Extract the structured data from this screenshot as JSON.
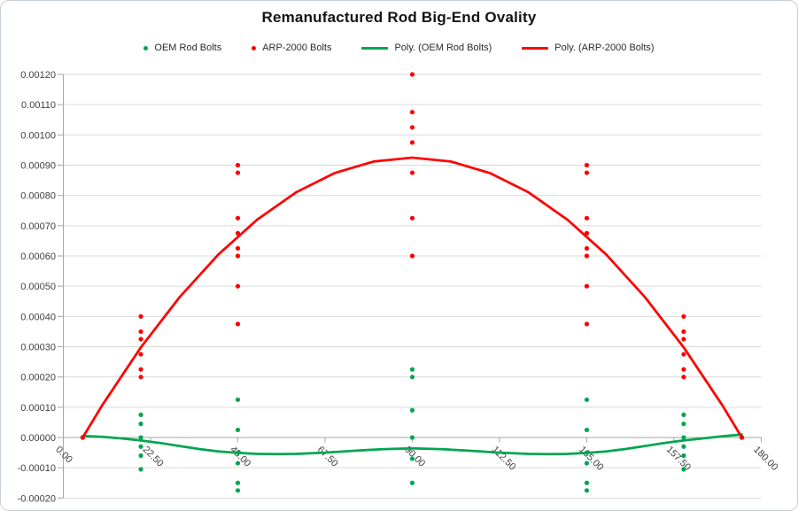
{
  "window": {
    "background": "#ffffff",
    "border_color": "#c7ced6"
  },
  "colors": {
    "oem_green": "#00a651",
    "arp_red": "#ff0000",
    "gridline": "#d9d9d9",
    "axis_line": "#a6a6a6",
    "axis_label": "#404040",
    "title_text": "#141414"
  },
  "chart_data": {
    "type": "scatter",
    "title": "Remanufactured Rod Big-End Ovality",
    "legend_position": "top",
    "grid": "horizontal",
    "x_axis": {
      "min": 0,
      "max": 180,
      "tick_values": [
        0,
        22.5,
        45,
        67.5,
        90,
        112.5,
        135,
        157.5,
        180
      ],
      "tick_labels": [
        "0.00",
        "22.50",
        "45.00",
        "67.50",
        "90.00",
        "112.50",
        "135.00",
        "157.50",
        "180.00"
      ],
      "label_rotation_deg": 45
    },
    "y_axis": {
      "min": -0.0002,
      "max": 0.0012,
      "tick_interval": 0.0001,
      "tick_labels": [
        "0.00120",
        "0.00110",
        "0.00100",
        "0.00090",
        "0.00080",
        "0.00070",
        "0.00060",
        "0.00050",
        "0.00040",
        "0.00030",
        "0.00020",
        "0.00010",
        "0.00000",
        "-0.00010",
        "-0.00020"
      ]
    },
    "series": [
      {
        "name": "OEM Rod Bolts",
        "kind": "scatter",
        "marker": "dot",
        "color": "#00a651",
        "points": [
          [
            5,
            0
          ],
          [
            20,
            7.5e-05
          ],
          [
            20,
            4.5e-05
          ],
          [
            20,
            0
          ],
          [
            20,
            -3e-05
          ],
          [
            20,
            -6e-05
          ],
          [
            20,
            -0.000105
          ],
          [
            45,
            0.000125
          ],
          [
            45,
            2.5e-05
          ],
          [
            45,
            -5e-05
          ],
          [
            45,
            -8.5e-05
          ],
          [
            45,
            -0.00015
          ],
          [
            45,
            -0.000175
          ],
          [
            90,
            0.000225
          ],
          [
            90,
            0.0002
          ],
          [
            90,
            9e-05
          ],
          [
            90,
            0
          ],
          [
            90,
            -7e-05
          ],
          [
            90,
            -0.00015
          ],
          [
            135,
            0.000125
          ],
          [
            135,
            2.5e-05
          ],
          [
            135,
            -5e-05
          ],
          [
            135,
            -8.5e-05
          ],
          [
            135,
            -0.00015
          ],
          [
            135,
            -0.000175
          ],
          [
            160,
            7.5e-05
          ],
          [
            160,
            4.5e-05
          ],
          [
            160,
            0
          ],
          [
            160,
            -3e-05
          ],
          [
            160,
            -6e-05
          ],
          [
            160,
            -0.000105
          ],
          [
            175,
            0
          ]
        ]
      },
      {
        "name": "ARP-2000 Bolts",
        "kind": "scatter",
        "marker": "dot",
        "color": "#ff0000",
        "points": [
          [
            5,
            0
          ],
          [
            20,
            0.0004
          ],
          [
            20,
            0.00035
          ],
          [
            20,
            0.000325
          ],
          [
            20,
            0.000275
          ],
          [
            20,
            0.000225
          ],
          [
            20,
            0.0002
          ],
          [
            45,
            0.0009
          ],
          [
            45,
            0.000875
          ],
          [
            45,
            0.000725
          ],
          [
            45,
            0.000675
          ],
          [
            45,
            0.000625
          ],
          [
            45,
            0.0006
          ],
          [
            45,
            0.0005
          ],
          [
            45,
            0.000375
          ],
          [
            90,
            0.0012
          ],
          [
            90,
            0.001075
          ],
          [
            90,
            0.001025
          ],
          [
            90,
            0.000975
          ],
          [
            90,
            0.000875
          ],
          [
            90,
            0.000725
          ],
          [
            90,
            0.0006
          ],
          [
            135,
            0.0009
          ],
          [
            135,
            0.000875
          ],
          [
            135,
            0.000725
          ],
          [
            135,
            0.000675
          ],
          [
            135,
            0.000625
          ],
          [
            135,
            0.0006
          ],
          [
            135,
            0.0005
          ],
          [
            135,
            0.000375
          ],
          [
            160,
            0.0004
          ],
          [
            160,
            0.00035
          ],
          [
            160,
            0.000325
          ],
          [
            160,
            0.000275
          ],
          [
            160,
            0.000225
          ],
          [
            160,
            0.0002
          ],
          [
            175,
            0
          ]
        ]
      },
      {
        "name": "Poly. (OEM Rod Bolts)",
        "kind": "line",
        "color": "#00a651",
        "points": [
          [
            5,
            5e-06
          ],
          [
            10,
            2e-06
          ],
          [
            15,
            -3e-06
          ],
          [
            20,
            -1e-05
          ],
          [
            25,
            -1.8e-05
          ],
          [
            30,
            -2.8e-05
          ],
          [
            35,
            -3.8e-05
          ],
          [
            40,
            -4.6e-05
          ],
          [
            45,
            -5.1e-05
          ],
          [
            50,
            -5.4e-05
          ],
          [
            55,
            -5.5e-05
          ],
          [
            60,
            -5.4e-05
          ],
          [
            67.5,
            -5e-05
          ],
          [
            75,
            -4.4e-05
          ],
          [
            82,
            -3.9e-05
          ],
          [
            90,
            -3.6e-05
          ],
          [
            98,
            -3.9e-05
          ],
          [
            105,
            -4.4e-05
          ],
          [
            112.5,
            -5e-05
          ],
          [
            120,
            -5.4e-05
          ],
          [
            125,
            -5.5e-05
          ],
          [
            130,
            -5.4e-05
          ],
          [
            135,
            -5.1e-05
          ],
          [
            140,
            -4.6e-05
          ],
          [
            145,
            -3.8e-05
          ],
          [
            150,
            -2.8e-05
          ],
          [
            155,
            -1.8e-05
          ],
          [
            160,
            -1e-05
          ],
          [
            165,
            -3e-06
          ],
          [
            170,
            4e-06
          ],
          [
            175,
            1e-05
          ]
        ]
      },
      {
        "name": "Poly. (ARP-2000 Bolts)",
        "kind": "line",
        "color": "#ff0000",
        "points": [
          [
            5,
            0
          ],
          [
            10,
            0.000106
          ],
          [
            20,
            0.000298
          ],
          [
            30,
            0.000464
          ],
          [
            40,
            0.000605
          ],
          [
            50,
            0.00072
          ],
          [
            60,
            0.00081
          ],
          [
            70,
            0.000874
          ],
          [
            80,
            0.000912
          ],
          [
            90,
            0.000925
          ],
          [
            100,
            0.000912
          ],
          [
            110,
            0.000874
          ],
          [
            120,
            0.00081
          ],
          [
            130,
            0.00072
          ],
          [
            140,
            0.000605
          ],
          [
            150,
            0.000464
          ],
          [
            160,
            0.000298
          ],
          [
            170,
            0.000106
          ],
          [
            175,
            0
          ]
        ]
      }
    ]
  }
}
